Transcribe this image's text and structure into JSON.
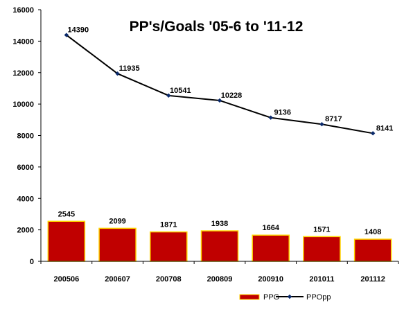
{
  "chart_data": {
    "type": "bar",
    "title": "PP's/Goals '05-6 to '11-12",
    "categories": [
      "200506",
      "200607",
      "200708",
      "200809",
      "200910",
      "201011",
      "201112"
    ],
    "series": [
      {
        "name": "PPG",
        "type": "bar",
        "values": [
          2545,
          2099,
          1871,
          1938,
          1664,
          1571,
          1408
        ],
        "color": "#C00000",
        "border_color": "#FFD700"
      },
      {
        "name": "PPOpp",
        "type": "line",
        "values": [
          14390,
          11935,
          10541,
          10228,
          9136,
          8717,
          8141
        ],
        "color": "#000000",
        "marker": "diamond",
        "marker_color": "#0B2A6B"
      }
    ],
    "yticks": [
      "0",
      "2000",
      "4000",
      "6000",
      "8000",
      "10000",
      "12000",
      "14000",
      "16000"
    ],
    "ylim": [
      0,
      16000
    ],
    "xlabel": "",
    "ylabel": "",
    "grid": false,
    "legend_position": "bottom-right"
  }
}
